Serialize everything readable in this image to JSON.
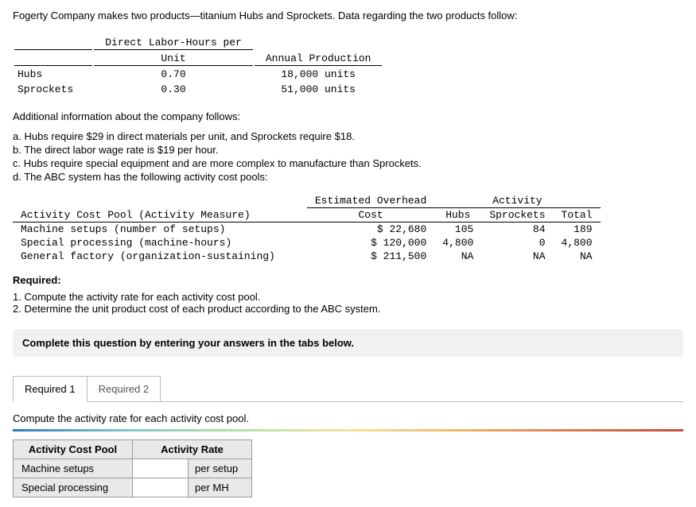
{
  "intro": "Fogerty Company makes two products—titanium Hubs and Sprockets. Data regarding the two products follow:",
  "table1": {
    "col_headers": [
      "Direct Labor-Hours per Unit",
      "Annual Production"
    ],
    "rows": [
      {
        "label": "Hubs",
        "dlh": "0.70",
        "annual": "18,000 units"
      },
      {
        "label": "Sprockets",
        "dlh": "0.30",
        "annual": "51,000 units"
      }
    ]
  },
  "addl_heading": "Additional information about the company follows:",
  "info_items": [
    "a. Hubs require $29 in direct materials per unit, and Sprockets require $18.",
    "b. The direct labor wage rate is $19 per hour.",
    "c. Hubs require special equipment and are more complex to manufacture than Sprockets.",
    "d. The ABC system has the following activity cost pools:"
  ],
  "table2": {
    "head_activity": "Activity Cost Pool (Activity Measure)",
    "head_cost_top": "Estimated Overhead",
    "head_cost_bot": "Cost",
    "head_span": "Activity",
    "head_hubs": "Hubs",
    "head_sprockets": "Sprockets",
    "head_total": "Total",
    "rows": [
      {
        "act": "Machine setups (number of setups)",
        "cost": "$ 22,680",
        "hubs": "105",
        "spr": "84",
        "tot": "189"
      },
      {
        "act": "Special processing (machine-hours)",
        "cost": "$ 120,000",
        "hubs": "4,800",
        "spr": "0",
        "tot": "4,800"
      },
      {
        "act": "General factory (organization-sustaining)",
        "cost": "$ 211,500",
        "hubs": "NA",
        "spr": "NA",
        "tot": "NA"
      }
    ]
  },
  "required_label": "Required:",
  "required_items": [
    "1. Compute the activity rate for each activity cost pool.",
    "2. Determine the unit product cost of each product according to the ABC system."
  ],
  "tabs_instruction": "Complete this question by entering your answers in the tabs below.",
  "tabs": {
    "t1": "Required 1",
    "t2": "Required 2"
  },
  "sub_instruction": "Compute the activity rate for each activity cost pool.",
  "answer_table": {
    "head_pool": "Activity Cost Pool",
    "head_rate": "Activity Rate",
    "rows": [
      {
        "label": "Machine setups",
        "unit": "per setup"
      },
      {
        "label": "Special processing",
        "unit": "per MH"
      }
    ]
  }
}
